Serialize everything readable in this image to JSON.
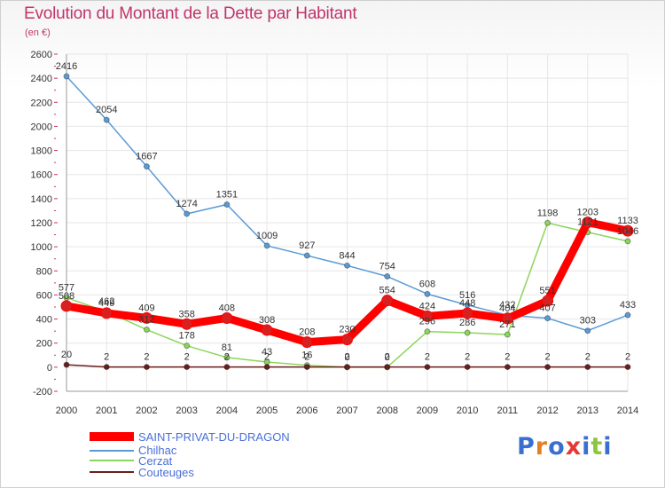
{
  "title": "Evolution du Montant de la Dette par Habitant",
  "subtitle": "(en €)",
  "logo": {
    "text": "Proxiti",
    "colors": [
      "#3a6fd0",
      "#e67e22",
      "#3a6fd0",
      "#e53935",
      "#3a6fd0",
      "#8cc63f",
      "#3a6fd0"
    ]
  },
  "chart_data": {
    "type": "line",
    "title": "Evolution du Montant de la Dette par Habitant",
    "ylabel": "(en €)",
    "xlabel": "",
    "categories": [
      "2000",
      "2001",
      "2002",
      "2003",
      "2004",
      "2005",
      "2006",
      "2007",
      "2008",
      "2009",
      "2010",
      "2011",
      "2012",
      "2013",
      "2014"
    ],
    "ylim": [
      -200,
      2600
    ],
    "yticks": [
      -200,
      0,
      200,
      400,
      600,
      800,
      1000,
      1200,
      1400,
      1600,
      1800,
      2000,
      2200,
      2400,
      2600
    ],
    "legend_position": "bottom-left",
    "series": [
      {
        "name": "SAINT-PRIVAT-DU-DRAGON",
        "color": "#ff0000",
        "values": [
          508,
          449,
          409,
          358,
          408,
          308,
          208,
          230,
          554,
          424,
          448,
          404,
          551,
          1203,
          1133
        ]
      },
      {
        "name": "Chilhac",
        "color": "#5b9bd5",
        "values": [
          2416,
          2054,
          1667,
          1274,
          1351,
          1009,
          927,
          844,
          754,
          608,
          516,
          432,
          407,
          303,
          433
        ]
      },
      {
        "name": "Cerzat",
        "color": "#8cd55b",
        "values": [
          577,
          462,
          312,
          178,
          81,
          43,
          16,
          0,
          0,
          296,
          286,
          271,
          1198,
          1121,
          1046
        ]
      },
      {
        "name": "Couteuges",
        "color": "#6b1e1e",
        "values": [
          20,
          2,
          2,
          2,
          2,
          2,
          2,
          2,
          2,
          2,
          2,
          2,
          2,
          2,
          2
        ]
      }
    ]
  }
}
